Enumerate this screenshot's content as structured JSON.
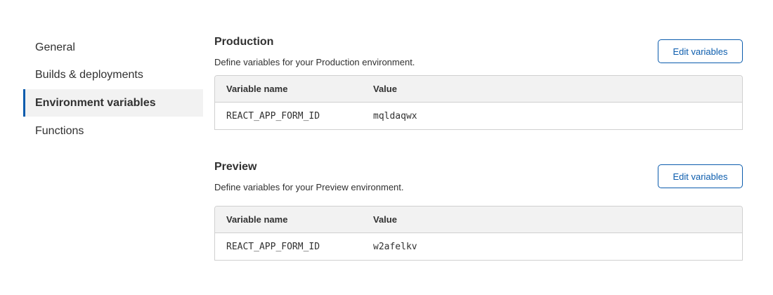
{
  "sidebar": {
    "items": [
      {
        "label": "General",
        "active": false
      },
      {
        "label": "Builds & deployments",
        "active": false
      },
      {
        "label": "Environment variables",
        "active": true
      },
      {
        "label": "Functions",
        "active": false
      }
    ]
  },
  "sections": [
    {
      "title": "Production",
      "description": "Define variables for your Production environment.",
      "button": "Edit variables",
      "columns": [
        "Variable name",
        "Value"
      ],
      "rows": [
        {
          "name": "REACT_APP_FORM_ID",
          "value": "mqldaqwx"
        }
      ]
    },
    {
      "title": "Preview",
      "description": "Define variables for your Preview environment.",
      "button": "Edit variables",
      "columns": [
        "Variable name",
        "Value"
      ],
      "rows": [
        {
          "name": "REACT_APP_FORM_ID",
          "value": "w2afelkv"
        }
      ]
    }
  ],
  "colors": {
    "accent": "#0b5cad",
    "header_bg": "#f2f2f2",
    "border": "#d0d0d0"
  }
}
